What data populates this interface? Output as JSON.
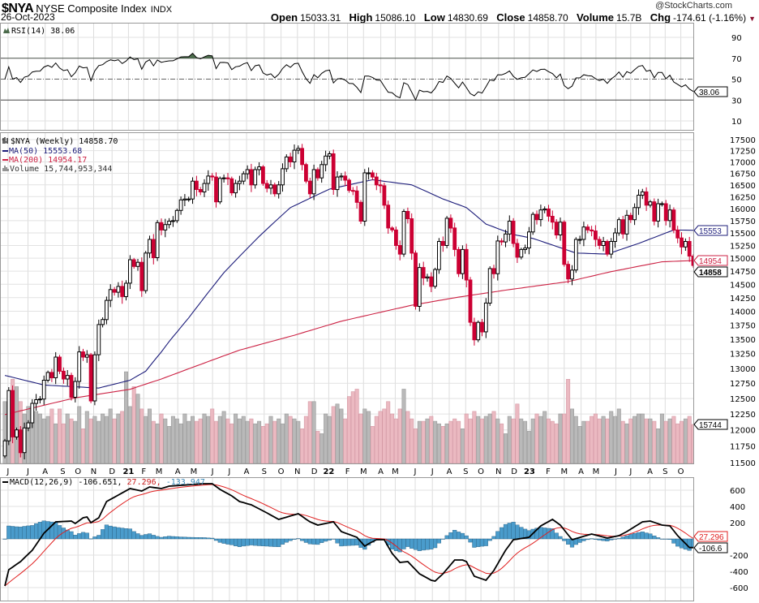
{
  "header": {
    "symbol": "$NYA",
    "name": "NYSE Composite Index",
    "exchange": "INDX",
    "date": "26-Oct-2023",
    "brand": "@StockCharts.com",
    "stats": [
      {
        "label": "Open",
        "value": "15033.31"
      },
      {
        "label": "High",
        "value": "15086.10"
      },
      {
        "label": "Low",
        "value": "14830.69"
      },
      {
        "label": "Close",
        "value": "14858.70"
      },
      {
        "label": "Volume",
        "value": "15.7B"
      },
      {
        "label": "Chg",
        "value": "-174.61 (-1.16%)"
      }
    ],
    "chg_arrow": "▼"
  },
  "colors": {
    "up_fill": "#ffffff",
    "down_fill": "#cc0033",
    "ma50": "#1c1c7a",
    "ma200": "#cc2244",
    "vol_up": "#b9b9b9",
    "vol_down": "#ebb9c1",
    "hist": "#4a9ccc",
    "signal": "#e02020",
    "macd": "#000000"
  },
  "chart_data": {
    "type": "candlestick",
    "timeframe": "weekly",
    "rsi": {
      "legend": "RSI(14) 38.06",
      "value": 38.06,
      "tag": "38.06",
      "ticks": [
        90,
        70,
        50,
        30,
        10
      ],
      "levels": [
        70,
        50,
        30
      ]
    },
    "price": {
      "legend": "$NYA (Weekly) 14858.70",
      "scale": "log",
      "ylim": [
        11500,
        17500
      ],
      "ticks": [
        17500,
        17250,
        17000,
        16750,
        16500,
        16250,
        16000,
        15750,
        15500,
        15250,
        15000,
        14750,
        14500,
        14250,
        14000,
        13750,
        13500,
        13250,
        13000,
        12750,
        12500,
        12250,
        12000,
        11750,
        11500
      ],
      "close": [
        11830,
        12630,
        11890,
        12000,
        11650,
        12030,
        12110,
        12420,
        12480,
        12490,
        12800,
        12930,
        12840,
        13190,
        12950,
        12820,
        12880,
        12520,
        12780,
        13280,
        13190,
        13230,
        12460,
        13230,
        13760,
        13850,
        14200,
        14400,
        14350,
        14460,
        14270,
        14520,
        14970,
        14840,
        14920,
        14380,
        15100,
        15370,
        15010,
        15710,
        15560,
        15670,
        15740,
        15750,
        15960,
        16180,
        16200,
        16200,
        16580,
        16400,
        16350,
        16530,
        16690,
        16670,
        16140,
        16640,
        16650,
        16630,
        16330,
        16530,
        16580,
        16740,
        16830,
        16500,
        16830,
        16890,
        16530,
        16430,
        16500,
        16310,
        16500,
        16850,
        17110,
        17000,
        17260,
        17300,
        16940,
        16580,
        16310,
        16830,
        16650,
        16940,
        17130,
        17180,
        16400,
        16670,
        16690,
        16600,
        16380,
        16370,
        16130,
        15740,
        16760,
        16760,
        16670,
        16500,
        16480,
        16070,
        15600,
        15560,
        15250,
        15080,
        15940,
        15790,
        15100,
        14090,
        14820,
        14620,
        14640,
        14460,
        14780,
        15330,
        15250,
        15800,
        15600,
        15170,
        14700,
        15170,
        14580,
        13800,
        13490,
        13800,
        13630,
        14150,
        14800,
        14700,
        15340,
        15320,
        15480,
        15740,
        15290,
        15020,
        15170,
        15200,
        15520,
        15880,
        15770,
        15970,
        15990,
        15840,
        15720,
        15460,
        15720,
        14880,
        14600,
        14770,
        15370,
        15370,
        15620,
        15560,
        15540,
        15370,
        15250,
        15330,
        15080,
        15330,
        15500,
        15770,
        15480,
        15860,
        15770,
        16020,
        16280,
        16350,
        16070,
        16140,
        15740,
        16100,
        16100,
        15750,
        15970,
        15560,
        15400,
        15220,
        15330,
        15040,
        14858.7
      ],
      "first_open": 11600,
      "close_tag": "14858",
      "ma50": {
        "legend": "MA(50) 15553.68",
        "tag": "15553",
        "value": 15553.68,
        "anchors": [
          [
            0,
            12880
          ],
          [
            10,
            12720
          ],
          [
            24,
            12670
          ],
          [
            32,
            12800
          ],
          [
            36,
            12950
          ],
          [
            40,
            13280
          ],
          [
            42,
            13460
          ],
          [
            47,
            13880
          ],
          [
            56,
            14720
          ],
          [
            65,
            15430
          ],
          [
            73,
            16020
          ],
          [
            83,
            16410
          ],
          [
            94,
            16610
          ],
          [
            104,
            16500
          ],
          [
            112,
            16200
          ],
          [
            118,
            16020
          ],
          [
            123,
            15680
          ],
          [
            130,
            15470
          ],
          [
            135,
            15390
          ],
          [
            146,
            15100
          ],
          [
            154,
            15080
          ],
          [
            162,
            15290
          ],
          [
            171,
            15560
          ],
          [
            176,
            15553.68
          ]
        ]
      },
      "ma200": {
        "legend": "MA(200) 14954.17",
        "tag": "14954",
        "value": 14954.17,
        "anchors": [
          [
            0,
            12240
          ],
          [
            6,
            12330
          ],
          [
            18,
            12510
          ],
          [
            32,
            12650
          ],
          [
            40,
            12820
          ],
          [
            60,
            13310
          ],
          [
            74,
            13570
          ],
          [
            86,
            13820
          ],
          [
            104,
            14110
          ],
          [
            116,
            14260
          ],
          [
            129,
            14400
          ],
          [
            144,
            14550
          ],
          [
            155,
            14740
          ],
          [
            168,
            14930
          ],
          [
            176,
            14954.17
          ]
        ]
      }
    },
    "volume": {
      "legend": "Volume 15,744,953,344",
      "tag": "15744",
      "unit": "billions",
      "values": [
        25,
        24,
        34,
        31,
        25,
        20,
        23,
        20,
        21,
        20,
        18,
        19,
        22,
        16,
        22,
        16,
        20,
        18,
        17,
        23,
        14,
        21,
        18,
        19,
        17,
        20,
        19,
        22,
        18,
        20,
        21,
        37,
        23,
        31,
        28,
        22,
        19,
        22,
        17,
        16,
        20,
        18,
        15,
        19,
        18,
        16,
        20,
        17,
        19,
        17,
        18,
        20,
        19,
        22,
        17,
        19,
        21,
        18,
        16,
        20,
        18,
        19,
        17,
        18,
        16,
        17,
        15,
        16,
        19,
        17,
        18,
        16,
        20,
        19,
        18,
        17,
        14,
        19,
        25,
        25,
        13,
        12,
        20,
        19,
        23,
        24,
        22,
        18,
        27,
        29,
        30,
        20,
        22,
        21,
        15,
        19,
        21,
        22,
        25,
        20,
        18,
        22,
        30,
        21,
        18,
        14,
        17,
        17,
        18,
        19,
        17,
        16,
        15,
        16,
        17,
        18,
        17,
        14,
        20,
        18,
        21,
        19,
        18,
        19,
        20,
        21,
        18,
        16,
        12,
        19,
        18,
        24,
        18,
        17,
        13,
        18,
        20,
        19,
        21,
        18,
        17,
        16,
        20,
        20,
        34,
        22,
        19,
        15,
        17,
        17,
        19,
        20,
        18,
        19,
        18,
        21,
        19,
        22,
        17,
        16,
        18,
        19,
        20,
        20,
        18,
        18,
        17,
        14,
        20,
        17,
        18,
        19,
        16,
        17,
        18,
        19,
        15.74
      ]
    },
    "macd": {
      "label": "MACD(12,26,9)",
      "macd_value": "-106.651,",
      "signal_value": "27.296,",
      "hist_value": "-133.947",
      "macd_tag": "-106.6",
      "signal_tag": "27.296",
      "macd_last": -106.651,
      "signal_last": 27.296,
      "ticks": [
        600,
        400,
        200,
        -200,
        -400,
        -600
      ],
      "anchors": [
        [
          0,
          -580
        ],
        [
          1,
          -380
        ],
        [
          4,
          -280
        ],
        [
          7,
          -140
        ],
        [
          10,
          70
        ],
        [
          13,
          210
        ],
        [
          17,
          220
        ],
        [
          18,
          190
        ],
        [
          20,
          260
        ],
        [
          21,
          270
        ],
        [
          22,
          200
        ],
        [
          24,
          260
        ],
        [
          26,
          460
        ],
        [
          29,
          540
        ],
        [
          32,
          620
        ],
        [
          35,
          590
        ],
        [
          37,
          640
        ],
        [
          40,
          620
        ],
        [
          42,
          650
        ],
        [
          51,
          680
        ],
        [
          53,
          680
        ],
        [
          55,
          610
        ],
        [
          58,
          530
        ],
        [
          60,
          460
        ],
        [
          63,
          420
        ],
        [
          67,
          320
        ],
        [
          70,
          240
        ],
        [
          75,
          310
        ],
        [
          78,
          210
        ],
        [
          80,
          170
        ],
        [
          84,
          210
        ],
        [
          86,
          90
        ],
        [
          90,
          20
        ],
        [
          92,
          -90
        ],
        [
          93,
          -60
        ],
        [
          95,
          -10
        ],
        [
          97,
          -10
        ],
        [
          99,
          -180
        ],
        [
          101,
          -290
        ],
        [
          103,
          -280
        ],
        [
          106,
          -430
        ],
        [
          109,
          -510
        ],
        [
          110,
          -520
        ],
        [
          112,
          -430
        ],
        [
          115,
          -260
        ],
        [
          117,
          -260
        ],
        [
          118,
          -280
        ],
        [
          120,
          -460
        ],
        [
          123,
          -510
        ],
        [
          125,
          -390
        ],
        [
          128,
          -140
        ],
        [
          130,
          -10
        ],
        [
          134,
          20
        ],
        [
          137,
          160
        ],
        [
          140,
          240
        ],
        [
          142,
          170
        ],
        [
          145,
          -10
        ],
        [
          150,
          60
        ],
        [
          154,
          10
        ],
        [
          157,
          40
        ],
        [
          159,
          90
        ],
        [
          163,
          210
        ],
        [
          165,
          220
        ],
        [
          168,
          170
        ],
        [
          170,
          160
        ],
        [
          172,
          40
        ],
        [
          175,
          -107
        ],
        [
          176,
          -106.651
        ]
      ]
    },
    "x_ticks": [
      {
        "label": "J",
        "week": 0.8
      },
      {
        "label": "J",
        "week": 5.9
      },
      {
        "label": "A",
        "week": 10.3
      },
      {
        "label": "S",
        "week": 14.8
      },
      {
        "label": "O",
        "week": 18.7
      },
      {
        "label": "N",
        "week": 22.7
      },
      {
        "label": "D",
        "week": 27.4
      },
      {
        "label": "21",
        "week": 31.6,
        "year": true
      },
      {
        "label": "F",
        "week": 35.5
      },
      {
        "label": "M",
        "week": 39.4
      },
      {
        "label": "A",
        "week": 44.2
      },
      {
        "label": "M",
        "week": 48.3
      },
      {
        "label": "J",
        "week": 53.1
      },
      {
        "label": "J",
        "week": 57.4
      },
      {
        "label": "A",
        "week": 61.8
      },
      {
        "label": "S",
        "week": 66.3
      },
      {
        "label": "O",
        "week": 70.6
      },
      {
        "label": "N",
        "week": 74.8
      },
      {
        "label": "D",
        "week": 79.1
      },
      {
        "label": "22",
        "week": 82.8,
        "year": true
      },
      {
        "label": "F",
        "week": 87.6
      },
      {
        "label": "M",
        "week": 91.7
      },
      {
        "label": "A",
        "week": 96.1
      },
      {
        "label": "M",
        "week": 99.8
      },
      {
        "label": "J",
        "week": 104.9
      },
      {
        "label": "J",
        "week": 109.3
      },
      {
        "label": "A",
        "week": 113.6
      },
      {
        "label": "S",
        "week": 117.8
      },
      {
        "label": "O",
        "week": 121.7
      },
      {
        "label": "N",
        "week": 126.2
      },
      {
        "label": "D",
        "week": 130.2
      },
      {
        "label": "23",
        "week": 134.1,
        "year": true
      },
      {
        "label": "F",
        "week": 138.9
      },
      {
        "label": "M",
        "week": 143
      },
      {
        "label": "A",
        "week": 147.3
      },
      {
        "label": "M",
        "week": 151.1
      },
      {
        "label": "J",
        "week": 156.2
      },
      {
        "label": "J",
        "week": 160
      },
      {
        "label": "A",
        "week": 164.9
      },
      {
        "label": "S",
        "week": 168.8
      },
      {
        "label": "O",
        "week": 172.8
      }
    ]
  }
}
